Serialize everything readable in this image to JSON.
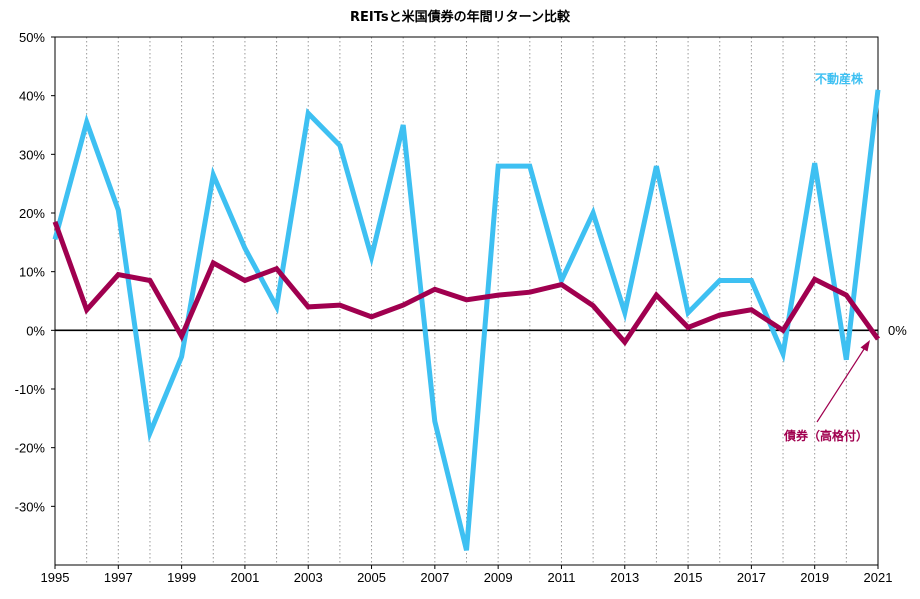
{
  "chart_data": {
    "type": "line",
    "title": "REITsと米国債券の年間リターン比較",
    "x": [
      1995,
      1996,
      1997,
      1998,
      1999,
      2000,
      2001,
      2002,
      2003,
      2004,
      2005,
      2006,
      2007,
      2008,
      2009,
      2010,
      2011,
      2012,
      2013,
      2014,
      2015,
      2016,
      2017,
      2018,
      2019,
      2020,
      2021
    ],
    "x_tick_labels": [
      "1995",
      "1997",
      "1999",
      "2001",
      "2003",
      "2005",
      "2007",
      "2009",
      "2011",
      "2013",
      "2015",
      "2017",
      "2019",
      "2021"
    ],
    "y_tick_labels": [
      "50%",
      "40%",
      "30%",
      "20%",
      "10%",
      "0%",
      "-10%",
      "-20%",
      "-30%"
    ],
    "ylim": [
      -40,
      50
    ],
    "grid": true,
    "zero_line_label": "0%",
    "series": [
      {
        "name": "不動産株",
        "color": "#3ec0f2",
        "values": [
          15.5,
          35.5,
          20.5,
          -17.5,
          -4.5,
          26.5,
          14,
          4,
          37,
          31.5,
          12.5,
          35,
          -15.5,
          -37.5,
          28,
          28,
          8.5,
          20,
          3,
          28,
          3,
          8.5,
          8.5,
          -4,
          28.5,
          -5,
          41
        ]
      },
      {
        "name": "債券（高格付）",
        "color": "#a0004f",
        "values": [
          18.5,
          3.5,
          9.5,
          8.5,
          -1,
          11.5,
          8.5,
          10.5,
          4,
          4.3,
          2.3,
          4.3,
          7,
          5.2,
          6,
          6.5,
          7.8,
          4.2,
          -2,
          6,
          0.5,
          2.6,
          3.5,
          0,
          8.7,
          6,
          -1.5
        ]
      }
    ]
  }
}
